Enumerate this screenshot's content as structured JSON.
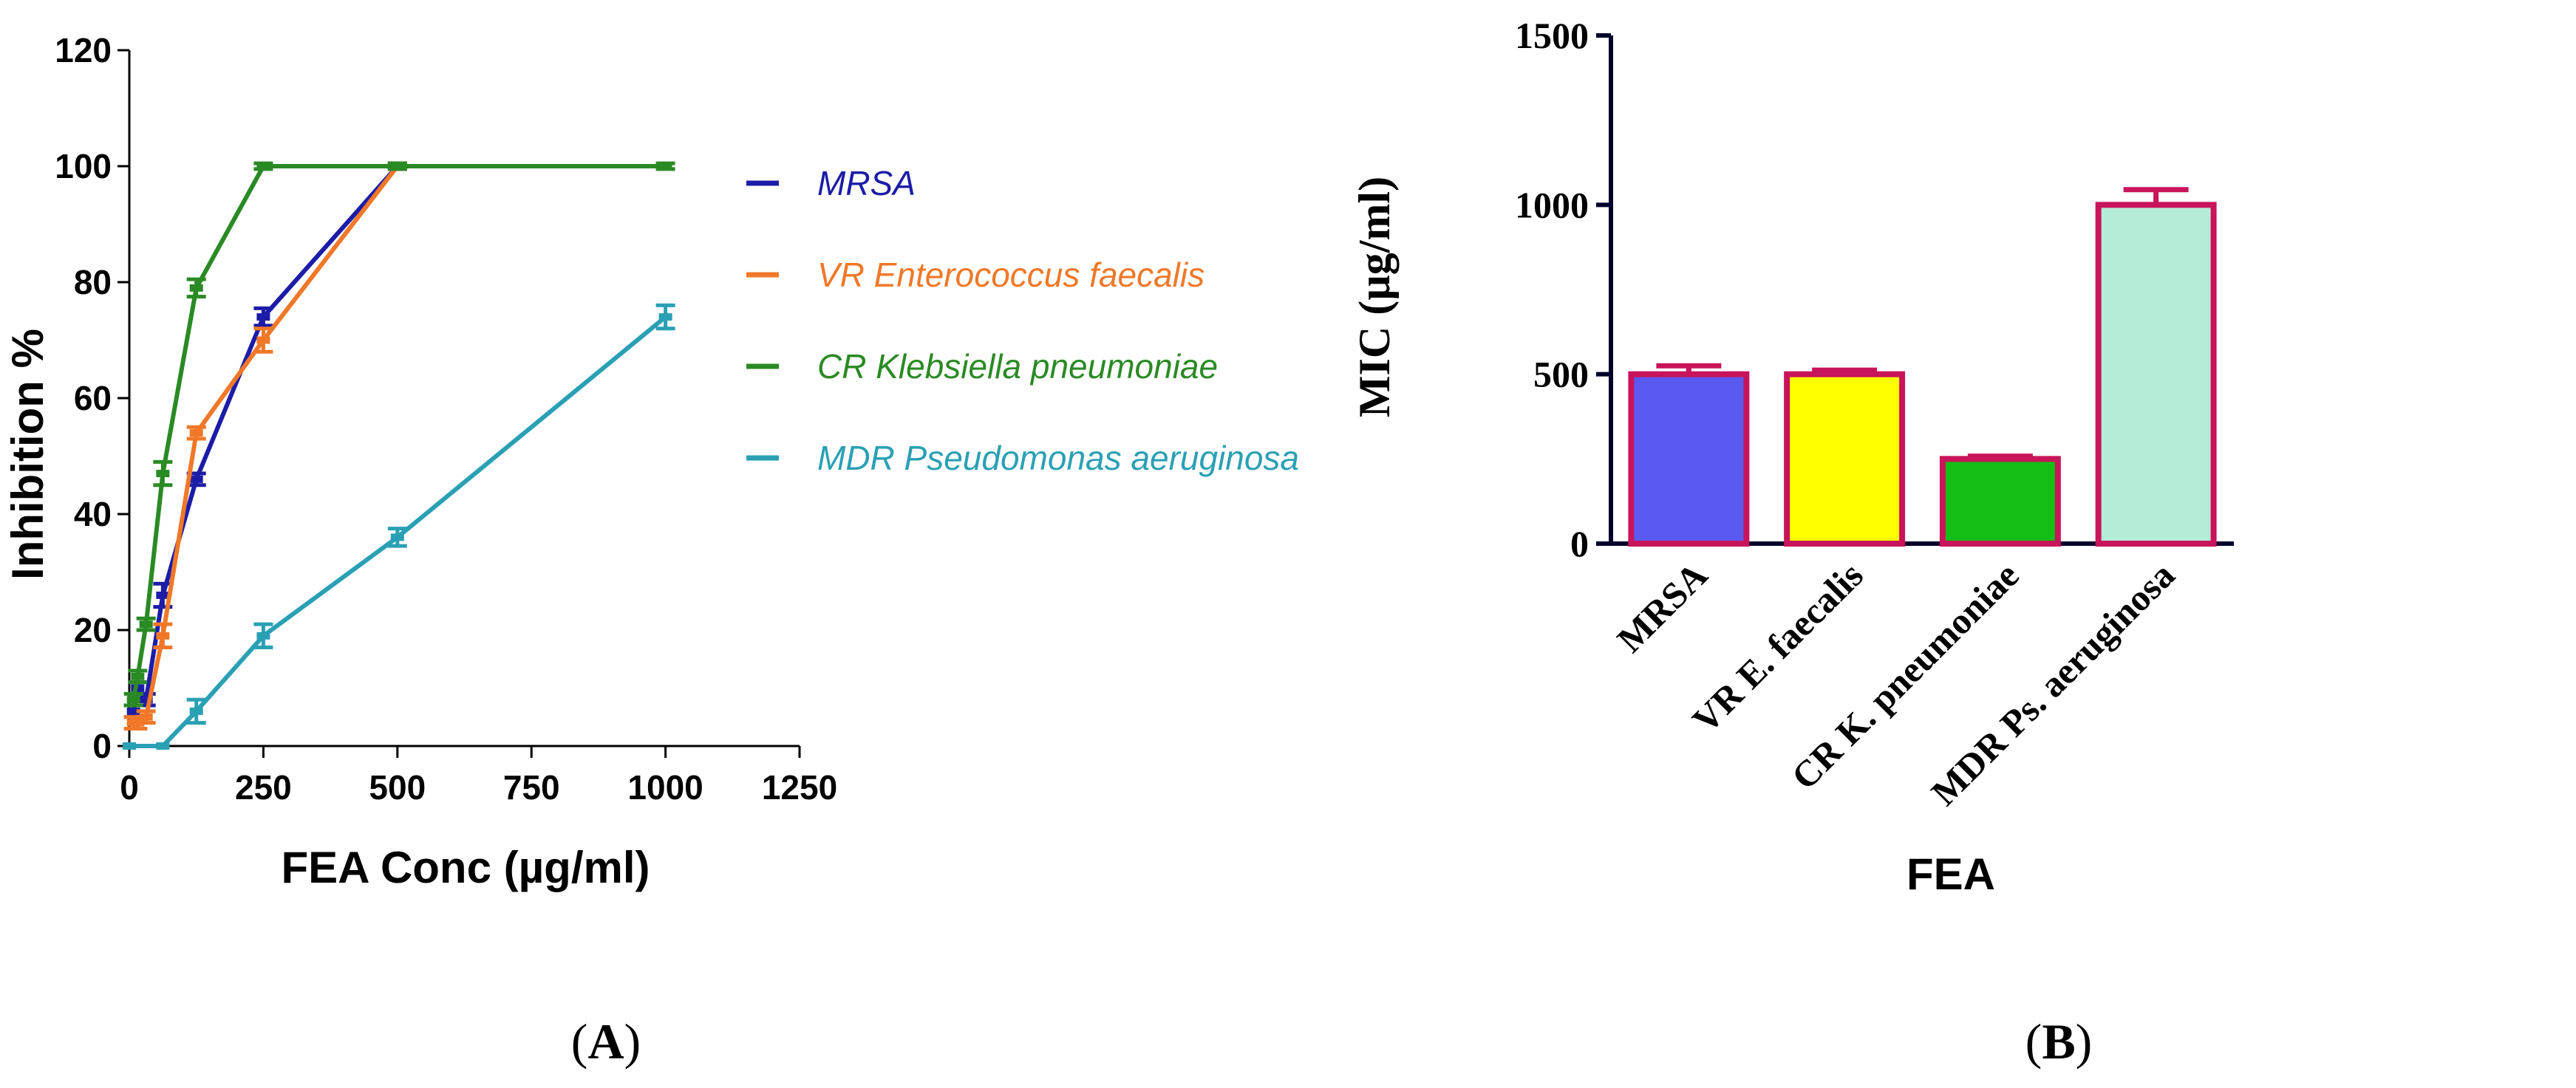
{
  "chart_data": [
    {
      "type": "line",
      "xlabel": "FEA Conc (µg/ml)",
      "ylabel": "Inhibition %",
      "xlim": [
        0,
        1250
      ],
      "ylim": [
        0,
        120
      ],
      "xticks": [
        "0",
        "250",
        "500",
        "750",
        "1000",
        "1250"
      ],
      "yticks": [
        "0",
        "20",
        "40",
        "60",
        "80",
        "100",
        "120"
      ],
      "legend_position": "right",
      "grid": false,
      "series": [
        {
          "name": "MRSA",
          "color": "#1c1ca8",
          "x": [
            7.8,
            15.6,
            31.25,
            62.5,
            125,
            250,
            500
          ],
          "y": [
            6,
            10,
            8,
            26,
            46,
            74,
            100
          ],
          "err": [
            1,
            1,
            1,
            2,
            1,
            1.5,
            0.5
          ]
        },
        {
          "name": "VR Enterococcus faecalis",
          "color": "#f07828",
          "x": [
            7.8,
            15.6,
            31.25,
            62.5,
            125,
            250,
            500
          ],
          "y": [
            4,
            4,
            5,
            19,
            54,
            70,
            100
          ],
          "err": [
            1,
            1,
            1,
            2,
            1,
            2,
            0.5
          ]
        },
        {
          "name": "CR Klebsiella pneumoniae",
          "color": "#2a8a24",
          "x": [
            7.8,
            15.6,
            31.25,
            62.5,
            125,
            250,
            500,
            1000
          ],
          "y": [
            8,
            12,
            21,
            47,
            79,
            100,
            100,
            100
          ],
          "err": [
            1,
            1,
            1,
            2,
            1.5,
            0.5,
            0.5,
            0.5
          ]
        },
        {
          "name": "MDR Pseudomonas aeruginosa",
          "color": "#2aa0b4",
          "x": [
            0,
            62.5,
            125,
            250,
            500,
            1000
          ],
          "y": [
            0,
            0,
            6,
            19,
            36,
            74
          ],
          "err": [
            0,
            0,
            2,
            2,
            1.5,
            2
          ]
        }
      ],
      "panel_label": "A"
    },
    {
      "type": "bar",
      "xlabel": "FEA",
      "ylabel": "MIC (µg/ml)",
      "ylim": [
        0,
        1500
      ],
      "yticks": [
        "0",
        "500",
        "1000",
        "1500"
      ],
      "categories": [
        "MRSA",
        "VR E. faecalis",
        "CR K. pneumoniae",
        "MDR Ps. aeruginosa"
      ],
      "values": [
        500,
        500,
        250,
        1000
      ],
      "err": [
        25,
        12,
        8,
        45
      ],
      "colors": [
        "#5a5af0",
        "#ffff00",
        "#14be14",
        "#b4ecd8"
      ],
      "edge_color": "#c8145a",
      "panel_label": "B"
    }
  ]
}
